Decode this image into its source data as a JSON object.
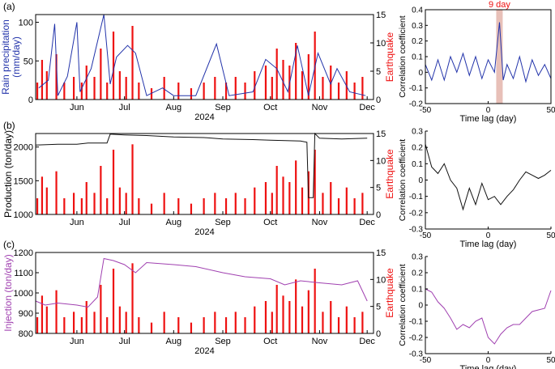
{
  "figure": {
    "panels": [
      {
        "label": "(a)",
        "left_ylabel": "Rain precipitation\n(mm/day)",
        "left_color": "#2233aa"
      },
      {
        "label": "(b)",
        "left_ylabel": "Production (ton/day)",
        "left_color": "#000000"
      },
      {
        "label": "(c)",
        "left_ylabel": "Injection (ton/day)",
        "left_color": "#a040b0"
      }
    ],
    "right_ylabel": "Earthquake",
    "xlabel_year": "2024",
    "xtick_labels": [
      "Jun",
      "Jul",
      "Aug",
      "Sep",
      "Oct",
      "Nov",
      "Dec"
    ],
    "corr_xlabel": "Time lag (day)",
    "corr_ylabel": "Correlation coefficient",
    "annotation": "9 day",
    "colors": {
      "earthquake": "#ee1111",
      "rain": "#2233aa",
      "production": "#111111",
      "injection": "#a040b0",
      "highlight": "#e8c0b8"
    }
  },
  "chart_data": [
    {
      "type": "bar+line",
      "panel": "(a)",
      "x_dates": [
        "2024-05-06",
        "2024-06-01",
        "2024-07-01",
        "2024-08-01",
        "2024-09-01",
        "2024-10-01",
        "2024-11-01",
        "2024-12-01"
      ],
      "left_ylim": [
        0,
        110
      ],
      "left_yticks": [
        0,
        50,
        100
      ],
      "right_ylim": [
        0,
        15
      ],
      "right_yticks": [
        0,
        5,
        10,
        15
      ],
      "rain_series": [
        {
          "date": "2024-05-08",
          "value": 15
        },
        {
          "date": "2024-05-14",
          "value": 25
        },
        {
          "date": "2024-05-18",
          "value": 98
        },
        {
          "date": "2024-05-20",
          "value": 5
        },
        {
          "date": "2024-05-26",
          "value": 30
        },
        {
          "date": "2024-06-01",
          "value": 100
        },
        {
          "date": "2024-06-03",
          "value": 10
        },
        {
          "date": "2024-06-10",
          "value": 40
        },
        {
          "date": "2024-06-18",
          "value": 110
        },
        {
          "date": "2024-06-22",
          "value": 20
        },
        {
          "date": "2024-06-26",
          "value": 55
        },
        {
          "date": "2024-07-03",
          "value": 70
        },
        {
          "date": "2024-07-08",
          "value": 60
        },
        {
          "date": "2024-07-15",
          "value": 5
        },
        {
          "date": "2024-07-25",
          "value": 15
        },
        {
          "date": "2024-08-01",
          "value": 5
        },
        {
          "date": "2024-08-15",
          "value": 5
        },
        {
          "date": "2024-08-28",
          "value": 72
        },
        {
          "date": "2024-09-05",
          "value": 5
        },
        {
          "date": "2024-09-20",
          "value": 10
        },
        {
          "date": "2024-09-28",
          "value": 52
        },
        {
          "date": "2024-10-05",
          "value": 40
        },
        {
          "date": "2024-10-12",
          "value": 10
        },
        {
          "date": "2024-10-18",
          "value": 70
        },
        {
          "date": "2024-10-25",
          "value": 5
        },
        {
          "date": "2024-10-31",
          "value": 60
        },
        {
          "date": "2024-11-08",
          "value": 20
        },
        {
          "date": "2024-11-12",
          "value": 40
        },
        {
          "date": "2024-11-20",
          "value": 10
        },
        {
          "date": "2024-11-30",
          "value": 5
        }
      ],
      "earthquake_counts_note": "daily earthquake counts shown as red bars, values 0–13",
      "earthquake_series": [
        {
          "date": "2024-05-07",
          "value": 3
        },
        {
          "date": "2024-05-10",
          "value": 7
        },
        {
          "date": "2024-05-13",
          "value": 5
        },
        {
          "date": "2024-05-19",
          "value": 8
        },
        {
          "date": "2024-05-24",
          "value": 3
        },
        {
          "date": "2024-05-30",
          "value": 4
        },
        {
          "date": "2024-06-04",
          "value": 3
        },
        {
          "date": "2024-06-07",
          "value": 6
        },
        {
          "date": "2024-06-12",
          "value": 4
        },
        {
          "date": "2024-06-16",
          "value": 9
        },
        {
          "date": "2024-06-20",
          "value": 3
        },
        {
          "date": "2024-06-24",
          "value": 12
        },
        {
          "date": "2024-06-28",
          "value": 5
        },
        {
          "date": "2024-07-02",
          "value": 4
        },
        {
          "date": "2024-07-06",
          "value": 13
        },
        {
          "date": "2024-07-10",
          "value": 3
        },
        {
          "date": "2024-07-18",
          "value": 2
        },
        {
          "date": "2024-07-26",
          "value": 4
        },
        {
          "date": "2024-08-04",
          "value": 3
        },
        {
          "date": "2024-08-12",
          "value": 2
        },
        {
          "date": "2024-08-20",
          "value": 3
        },
        {
          "date": "2024-08-27",
          "value": 4
        },
        {
          "date": "2024-09-03",
          "value": 3
        },
        {
          "date": "2024-09-09",
          "value": 4
        },
        {
          "date": "2024-09-15",
          "value": 3
        },
        {
          "date": "2024-09-21",
          "value": 5
        },
        {
          "date": "2024-09-28",
          "value": 6
        },
        {
          "date": "2024-10-02",
          "value": 4
        },
        {
          "date": "2024-10-05",
          "value": 9
        },
        {
          "date": "2024-10-09",
          "value": 7
        },
        {
          "date": "2024-10-13",
          "value": 6
        },
        {
          "date": "2024-10-17",
          "value": 10
        },
        {
          "date": "2024-10-21",
          "value": 5
        },
        {
          "date": "2024-10-25",
          "value": 8
        },
        {
          "date": "2024-10-29",
          "value": 12
        },
        {
          "date": "2024-11-03",
          "value": 4
        },
        {
          "date": "2024-11-08",
          "value": 6
        },
        {
          "date": "2024-11-13",
          "value": 3
        },
        {
          "date": "2024-11-18",
          "value": 5
        },
        {
          "date": "2024-11-23",
          "value": 3
        },
        {
          "date": "2024-11-28",
          "value": 4
        }
      ]
    },
    {
      "type": "bar+line",
      "panel": "(b)",
      "left_ylim": [
        1000,
        2200
      ],
      "left_yticks": [
        1000,
        1500,
        2000
      ],
      "right_ylim": [
        0,
        15
      ],
      "right_yticks": [
        0,
        5,
        10,
        15
      ],
      "production_series": [
        {
          "date": "2024-05-06",
          "value": 2030
        },
        {
          "date": "2024-05-20",
          "value": 2040
        },
        {
          "date": "2024-06-01",
          "value": 2040
        },
        {
          "date": "2024-06-08",
          "value": 2060
        },
        {
          "date": "2024-06-20",
          "value": 2060
        },
        {
          "date": "2024-06-22",
          "value": 2190
        },
        {
          "date": "2024-07-01",
          "value": 2180
        },
        {
          "date": "2024-07-15",
          "value": 2170
        },
        {
          "date": "2024-08-01",
          "value": 2150
        },
        {
          "date": "2024-08-20",
          "value": 2140
        },
        {
          "date": "2024-09-01",
          "value": 2120
        },
        {
          "date": "2024-09-20",
          "value": 2110
        },
        {
          "date": "2024-10-01",
          "value": 2100
        },
        {
          "date": "2024-10-20",
          "value": 2090
        },
        {
          "date": "2024-10-24",
          "value": 2070
        },
        {
          "date": "2024-10-25",
          "value": 1250
        },
        {
          "date": "2024-10-28",
          "value": 1250
        },
        {
          "date": "2024-10-29",
          "value": 2200
        },
        {
          "date": "2024-11-01",
          "value": 2130
        },
        {
          "date": "2024-11-15",
          "value": 2120
        },
        {
          "date": "2024-12-01",
          "value": 2130
        }
      ]
    },
    {
      "type": "bar+line",
      "panel": "(c)",
      "left_ylim": [
        800,
        1200
      ],
      "left_yticks": [
        800,
        900,
        1000,
        1100,
        1200
      ],
      "right_ylim": [
        0,
        15
      ],
      "right_yticks": [
        0,
        5,
        10,
        15
      ],
      "injection_series": [
        {
          "date": "2024-05-06",
          "value": 960
        },
        {
          "date": "2024-05-12",
          "value": 940
        },
        {
          "date": "2024-05-20",
          "value": 950
        },
        {
          "date": "2024-06-01",
          "value": 940
        },
        {
          "date": "2024-06-08",
          "value": 930
        },
        {
          "date": "2024-06-14",
          "value": 980
        },
        {
          "date": "2024-06-18",
          "value": 1170
        },
        {
          "date": "2024-06-24",
          "value": 1160
        },
        {
          "date": "2024-07-01",
          "value": 1140
        },
        {
          "date": "2024-07-08",
          "value": 1100
        },
        {
          "date": "2024-07-15",
          "value": 1150
        },
        {
          "date": "2024-08-01",
          "value": 1140
        },
        {
          "date": "2024-08-15",
          "value": 1130
        },
        {
          "date": "2024-09-01",
          "value": 1100
        },
        {
          "date": "2024-09-15",
          "value": 1080
        },
        {
          "date": "2024-10-01",
          "value": 1070
        },
        {
          "date": "2024-10-10",
          "value": 1040
        },
        {
          "date": "2024-10-20",
          "value": 1060
        },
        {
          "date": "2024-11-01",
          "value": 1050
        },
        {
          "date": "2024-11-15",
          "value": 1040
        },
        {
          "date": "2024-11-25",
          "value": 1060
        },
        {
          "date": "2024-12-01",
          "value": 960
        }
      ]
    },
    {
      "type": "line",
      "panel": "(a) correlation",
      "xlim": [
        -50,
        50
      ],
      "xticks": [
        -50,
        0,
        50
      ],
      "ylim": [
        -0.2,
        0.4
      ],
      "yticks": [
        -0.2,
        -0.1,
        0,
        0.1,
        0.2,
        0.3,
        0.4
      ],
      "highlight_lag": 9,
      "x": [
        -50,
        -45,
        -40,
        -35,
        -30,
        -25,
        -20,
        -15,
        -10,
        -5,
        0,
        5,
        9,
        12,
        15,
        20,
        25,
        30,
        35,
        40,
        45,
        50
      ],
      "y": [
        0.05,
        -0.05,
        0.08,
        -0.05,
        0.1,
        0.0,
        0.12,
        -0.02,
        0.1,
        -0.04,
        0.08,
        0.0,
        0.32,
        -0.05,
        0.05,
        -0.04,
        0.1,
        -0.06,
        0.08,
        -0.02,
        0.05,
        -0.04
      ]
    },
    {
      "type": "line",
      "panel": "(b) correlation",
      "xlim": [
        -50,
        50
      ],
      "xticks": [
        -50,
        0,
        50
      ],
      "ylim": [
        -0.3,
        0.3
      ],
      "yticks": [
        -0.3,
        -0.2,
        -0.1,
        0,
        0.1,
        0.2,
        0.3
      ],
      "x": [
        -50,
        -45,
        -40,
        -35,
        -30,
        -25,
        -20,
        -15,
        -10,
        -5,
        0,
        5,
        10,
        15,
        20,
        25,
        30,
        35,
        40,
        45,
        50
      ],
      "y": [
        0.22,
        0.08,
        0.04,
        0.1,
        0.0,
        -0.05,
        -0.18,
        -0.05,
        -0.15,
        -0.02,
        -0.12,
        -0.1,
        -0.15,
        -0.1,
        -0.06,
        0.0,
        0.05,
        0.03,
        0.01,
        0.03,
        0.06
      ]
    },
    {
      "type": "line",
      "panel": "(c) correlation",
      "xlim": [
        -50,
        50
      ],
      "xticks": [
        -50,
        0,
        50
      ],
      "ylim": [
        -0.3,
        0.3
      ],
      "yticks": [
        -0.3,
        -0.2,
        -0.1,
        0,
        0.1,
        0.2,
        0.3
      ],
      "x": [
        -50,
        -45,
        -40,
        -35,
        -30,
        -25,
        -20,
        -15,
        -10,
        -5,
        0,
        5,
        10,
        15,
        20,
        25,
        30,
        35,
        40,
        45,
        50
      ],
      "y": [
        0.1,
        0.08,
        0.02,
        -0.02,
        -0.08,
        -0.15,
        -0.12,
        -0.14,
        -0.1,
        -0.08,
        -0.2,
        -0.24,
        -0.18,
        -0.14,
        -0.12,
        -0.12,
        -0.08,
        -0.04,
        -0.03,
        -0.02,
        0.09
      ]
    }
  ]
}
